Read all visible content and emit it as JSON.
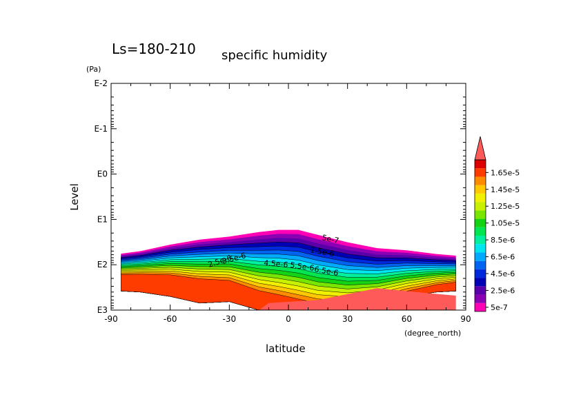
{
  "chart_data": {
    "type": "contour",
    "title_main": "Ls=180-210",
    "title_sub": "specific humidity",
    "xlabel": "latitude",
    "xunit": "(degree_north)",
    "ylabel": "Level",
    "yunit": "(Pa)",
    "yscale": "log",
    "yreversed": true,
    "xlim": [
      -90,
      90
    ],
    "ylim_pa": [
      0.01,
      1000
    ],
    "x_ticks": [
      -90,
      -60,
      -30,
      0,
      30,
      60,
      90
    ],
    "x_tick_labels": [
      "-90",
      "-60",
      "-30",
      "0",
      "30",
      "60",
      "90"
    ],
    "y_ticks_pa": [
      0.01,
      0.1,
      1,
      10,
      100,
      1000
    ],
    "y_tick_labels": [
      "E-2",
      "E-1",
      "E0",
      "E1",
      "E2",
      "E3"
    ],
    "colorbar": {
      "levels": [
        5e-07,
        1.5e-06,
        2.5e-06,
        3.5e-06,
        4.5e-06,
        5.5e-06,
        6.5e-06,
        7.5e-06,
        8.5e-06,
        9.5e-06,
        1.05e-05,
        1.15e-05,
        1.25e-05,
        1.35e-05,
        1.45e-05,
        1.55e-05,
        1.65e-05
      ],
      "labels": [
        "5e-7",
        "2.5e-6",
        "4.5e-6",
        "6.5e-6",
        "8.5e-6",
        "1.05e-5",
        "1.25e-5",
        "1.45e-5",
        "1.65e-5"
      ],
      "colors": [
        "#ff00b4",
        "#8c00b4",
        "#5a00aa",
        "#0000b4",
        "#0028dc",
        "#0064f0",
        "#00aaff",
        "#00e6f0",
        "#00f0a0",
        "#00e650",
        "#14d214",
        "#78e600",
        "#c8f000",
        "#f0f000",
        "#ffc800",
        "#ff8c00",
        "#ff3c00",
        "#dc0000"
      ],
      "extend_color": "#ff5a5a"
    },
    "contour_labels": [
      "5e-7",
      "1.5e-6",
      "2.5e-6",
      "3.5e-6",
      "4.5e-6",
      "5.5e-6",
      "6.5e-6"
    ],
    "field": {
      "x": [
        -85,
        -75,
        -60,
        -45,
        -30,
        -15,
        -5,
        5,
        15,
        30,
        45,
        60,
        75,
        85
      ],
      "bottom_pa": [
        380,
        400,
        500,
        700,
        650,
        1000,
        1000,
        1000,
        1000,
        900,
        700,
        500,
        400,
        380
      ],
      "top_pa": [
        57,
        50,
        36,
        28,
        24,
        19,
        17,
        17,
        22,
        32,
        43,
        48,
        58,
        63
      ]
    }
  }
}
